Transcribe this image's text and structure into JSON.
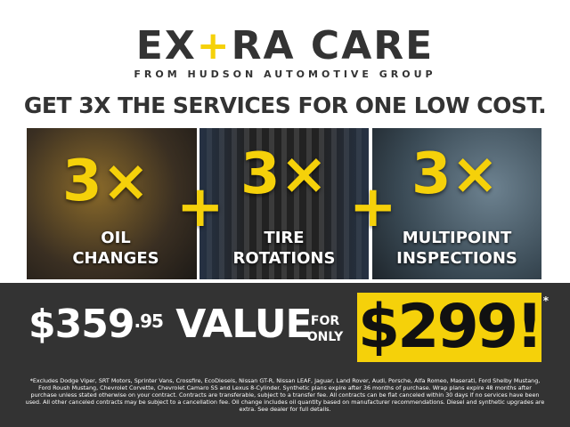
{
  "logo": {
    "part1": "EX",
    "plus": "+",
    "part2": "RA CARE",
    "subtitle": "FROM HUDSON AUTOMOTIVE GROUP"
  },
  "headline": "GET 3X THE SERVICES FOR ONE LOW COST.",
  "services": [
    {
      "count": "3×",
      "label_line1": "OIL",
      "label_line2": "CHANGES"
    },
    {
      "count": "3×",
      "label_line1": "TIRE",
      "label_line2": "ROTATIONS"
    },
    {
      "count": "3×",
      "label_line1": "MULTIPOINT",
      "label_line2": "INSPECTIONS"
    }
  ],
  "plus_sign": "+",
  "offer": {
    "value_dollars": "$359",
    "value_cents": ".95",
    "value_word": "VALUE",
    "for": "FOR",
    "only": "ONLY",
    "price": "$299!",
    "asterisk": "*"
  },
  "disclaimer": "*Excludes Dodge Viper, SRT Motors, Sprinter Vans, Crossfire, EcoDiesels, Nissan GT-R, Nissan LEAF, Jaguar, Land Rover, Audi, Porsche, Alfa Romeo, Maserati, Ford Shelby Mustang, Ford Roush Mustang, Chevrolet Corvette, Chevrolet Camaro SS and Lexus 8-Cylinder. Synthetic plans expire after 36 months of purchase. Wrap plans expire 48 months after purchase unless stated otherwise on your contract. Contracts are transferable, subject to a transfer fee. All contracts can be flat canceled within 30 days if no services have been used. All other canceled contracts may be subject to a cancellation fee. Oil change includes oil quantity based on manufacturer recommendations. Diesel and synthetic upgrades are extra. See dealer for full details.",
  "colors": {
    "accent": "#f5d10a",
    "dark": "#333333"
  }
}
